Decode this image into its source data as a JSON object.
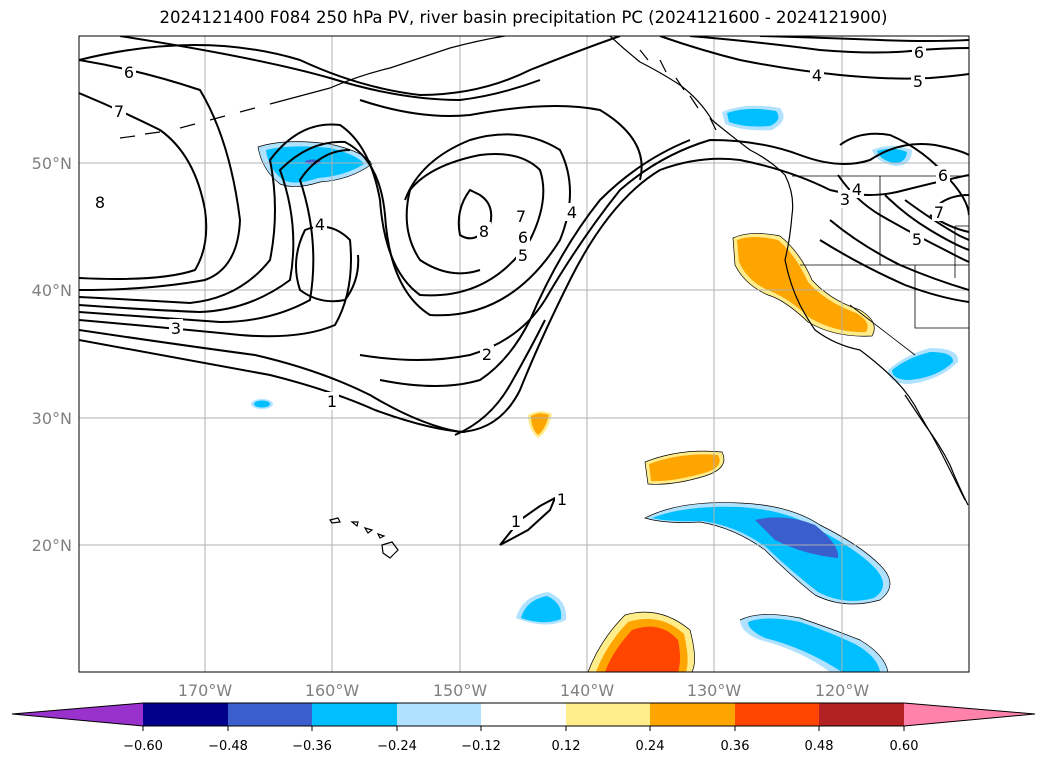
{
  "title": "2024121400 F084 250 hPa PV, river basin precipitation PC (2024121600 - 2024121900)",
  "map": {
    "lat_labels": [
      "50°N",
      "40°N",
      "30°N",
      "20°N"
    ],
    "lon_labels": [
      "170°W",
      "160°W",
      "150°W",
      "140°W",
      "130°W",
      "120°W"
    ],
    "contour_labels": [
      {
        "text": "6",
        "name": "pv-contour-label-6"
      },
      {
        "text": "7",
        "name": "pv-contour-label-7"
      },
      {
        "text": "8",
        "name": "pv-contour-label-8"
      },
      {
        "text": "4",
        "name": "pv-contour-label-4"
      },
      {
        "text": "3",
        "name": "pv-contour-label-3"
      },
      {
        "text": "1",
        "name": "pv-contour-label-1"
      },
      {
        "text": "2",
        "name": "pv-contour-label-2"
      },
      {
        "text": "8",
        "name": "pv-contour-label-8"
      },
      {
        "text": "7",
        "name": "pv-contour-label-7"
      },
      {
        "text": "6",
        "name": "pv-contour-label-6"
      },
      {
        "text": "5",
        "name": "pv-contour-label-5"
      },
      {
        "text": "4",
        "name": "pv-contour-label-4"
      },
      {
        "text": "4",
        "name": "pv-contour-label-4"
      },
      {
        "text": "6",
        "name": "pv-contour-label-6"
      },
      {
        "text": "5",
        "name": "pv-contour-label-5"
      },
      {
        "text": "3",
        "name": "pv-contour-label-3"
      },
      {
        "text": "4",
        "name": "pv-contour-label-4"
      },
      {
        "text": "6",
        "name": "pv-contour-label-6"
      },
      {
        "text": "5",
        "name": "pv-contour-label-5"
      },
      {
        "text": "7",
        "name": "pv-contour-label-7"
      },
      {
        "text": "1",
        "name": "pv-contour-label-1"
      },
      {
        "text": "1",
        "name": "pv-contour-label-1"
      }
    ]
  },
  "colorbar": {
    "colors": [
      "#9932cc",
      "#00008b",
      "#3a5fcd",
      "#00bfff",
      "#b0e2ff",
      "#ffffff",
      "#ffec8b",
      "#ffa500",
      "#ff4500",
      "#b22222",
      "#ff82ab"
    ],
    "tick_labels": [
      "−0.60",
      "−0.48",
      "−0.36",
      "−0.24",
      "−0.12",
      "0.12",
      "0.24",
      "0.36",
      "0.48",
      "0.60"
    ]
  }
}
